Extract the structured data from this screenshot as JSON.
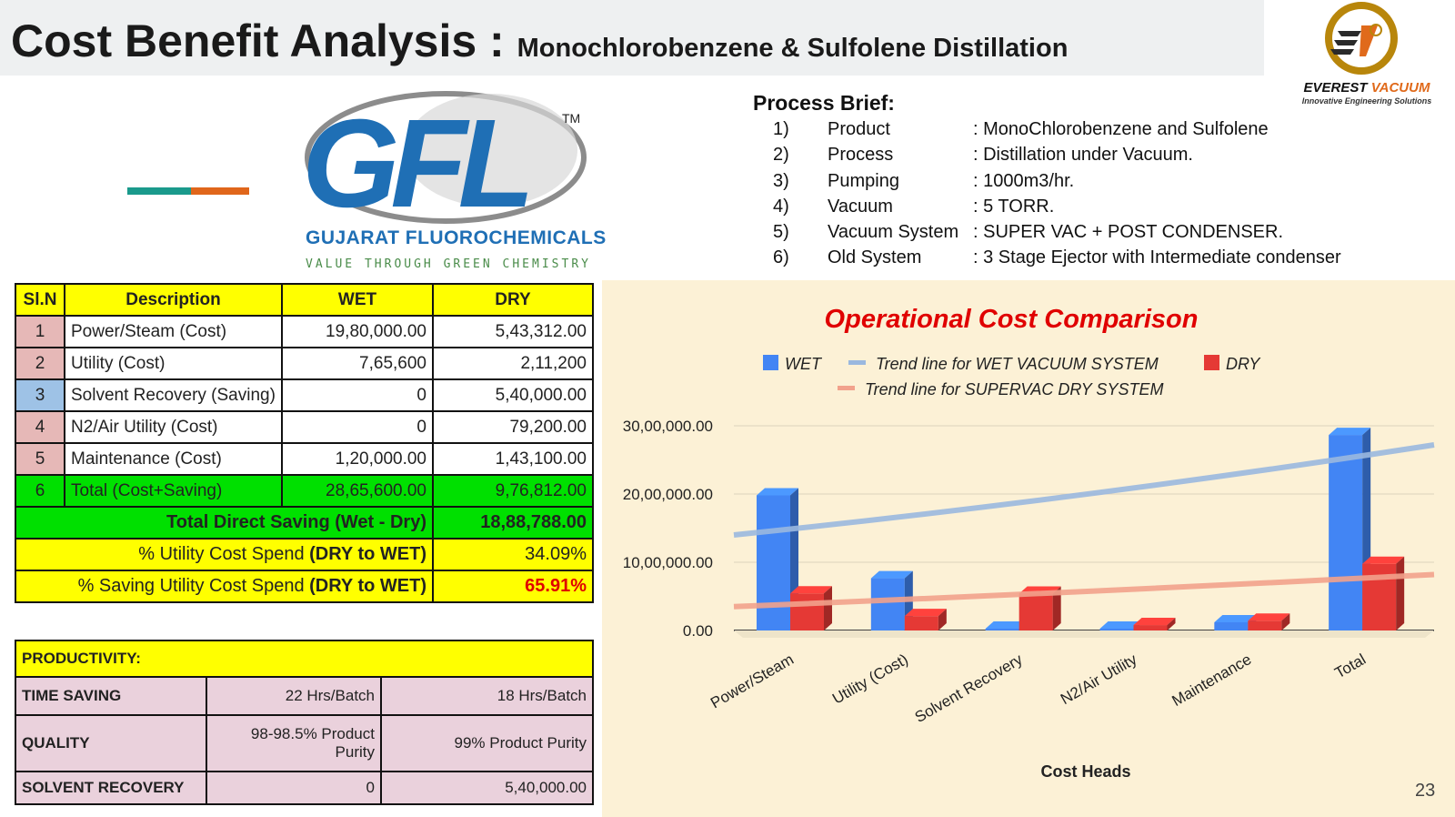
{
  "header": {
    "title": "Cost Benefit Analysis :",
    "subtitle": "Monochlorobenzene & Sulfolene Distillation"
  },
  "brand": {
    "logo_icon": "everest-vacuum-logo",
    "name_part1": "EVEREST",
    "name_part2": "VACUUM",
    "tagline": "Innovative Engineering Solutions",
    "color_gold": "#b8860b",
    "color_orange": "#e06a1b"
  },
  "client": {
    "logo_icon": "gfl-logo",
    "logo_text": "GFL",
    "tm": "TM",
    "name": "GUJARAT FLUOROCHEMICALS",
    "tagline": "VALUE THROUGH GREEN CHEMISTRY"
  },
  "process_brief": {
    "title": "Process Brief:",
    "items": [
      {
        "num": "1)",
        "label": "Product",
        "value": ": MonoChlorobenzene and Sulfolene"
      },
      {
        "num": "2)",
        "label": "Process",
        "value": ": Distillation under Vacuum."
      },
      {
        "num": "3)",
        "label": "Pumping",
        "value": ": 1000m3/hr."
      },
      {
        "num": "4)",
        "label": "Vacuum",
        "value": ": 5 TORR."
      },
      {
        "num": "5)",
        "label": "Vacuum System",
        "value": ": SUPER VAC + POST CONDENSER."
      },
      {
        "num": "6)",
        "label": "Old System",
        "value": ": 3 Stage Ejector with Intermediate condenser"
      }
    ]
  },
  "cost_table": {
    "headers": [
      "Sl.N",
      "Description",
      "WET",
      "DRY"
    ],
    "rows": [
      {
        "sl": "1",
        "desc": "Power/Steam (Cost)",
        "wet": "19,80,000.00",
        "dry": "5,43,312.00"
      },
      {
        "sl": "2",
        "desc": "Utility (Cost)",
        "wet": "7,65,600",
        "dry": "2,11,200"
      },
      {
        "sl": "3",
        "desc": "Solvent Recovery (Saving)",
        "wet": "0",
        "dry": "5,40,000.00"
      },
      {
        "sl": "4",
        "desc": "N2/Air Utility (Cost)",
        "wet": "0",
        "dry": "79,200.00"
      },
      {
        "sl": "5",
        "desc": "Maintenance (Cost)",
        "wet": "1,20,000.00",
        "dry": "1,43,100.00"
      },
      {
        "sl": "6",
        "desc": "Total (Cost+Saving)",
        "wet": "28,65,600.00",
        "dry": "9,76,812.00"
      }
    ],
    "direct_saving_label": "Total Direct Saving (Wet - Dry)",
    "direct_saving_value": "18,88,788.00",
    "util_spend_label": "% Utility Cost Spend ",
    "util_spend_bold": "(DRY to WET)",
    "util_spend_value": "34.09%",
    "saving_spend_label": "% Saving Utility Cost Spend ",
    "saving_spend_bold": "(DRY to WET)",
    "saving_spend_value": "65.91%"
  },
  "productivity": {
    "title": "PRODUCTIVITY:",
    "rows": [
      {
        "label": "TIME SAVING",
        "wet": "22 Hrs/Batch",
        "dry": "18 Hrs/Batch"
      },
      {
        "label": "QUALITY",
        "wet": "98-98.5% Product Purity",
        "dry": "99% Product Purity"
      },
      {
        "label": "SOLVENT RECOVERY",
        "wet": "0",
        "dry": "5,40,000.00"
      }
    ]
  },
  "chart_data": {
    "type": "bar",
    "title": "Operational Cost Comparison",
    "xlabel": "Cost Heads",
    "ylabel": "",
    "categories": [
      "Power/Steam",
      "Utility (Cost)",
      "Solvent Recovery",
      "N2/Air Utility",
      "Maintenance",
      "Total"
    ],
    "series": [
      {
        "name": "WET",
        "color": "#4285f4",
        "values": [
          1980000,
          765600,
          0,
          0,
          120000,
          2865600
        ]
      },
      {
        "name": "DRY",
        "color": "#e53935",
        "values": [
          543312,
          211200,
          540000,
          79200,
          143100,
          976812
        ]
      }
    ],
    "trendlines": [
      {
        "name": "Trend line for WET VACUUM SYSTEM",
        "color": "#9ab8df",
        "start": 1400000,
        "end": 2720000
      },
      {
        "name": "Trend line for SUPERVAC DRY SYSTEM",
        "color": "#f2a28c",
        "start": 350000,
        "end": 820000
      }
    ],
    "ylim": [
      0,
      3000000
    ],
    "yticks": [
      0,
      1000000,
      2000000,
      3000000
    ],
    "ytick_labels": [
      "0.00",
      "10,00,000.00",
      "20,00,000.00",
      "30,00,000.00"
    ],
    "legend_position": "top",
    "grid": true
  },
  "page_number": "23"
}
